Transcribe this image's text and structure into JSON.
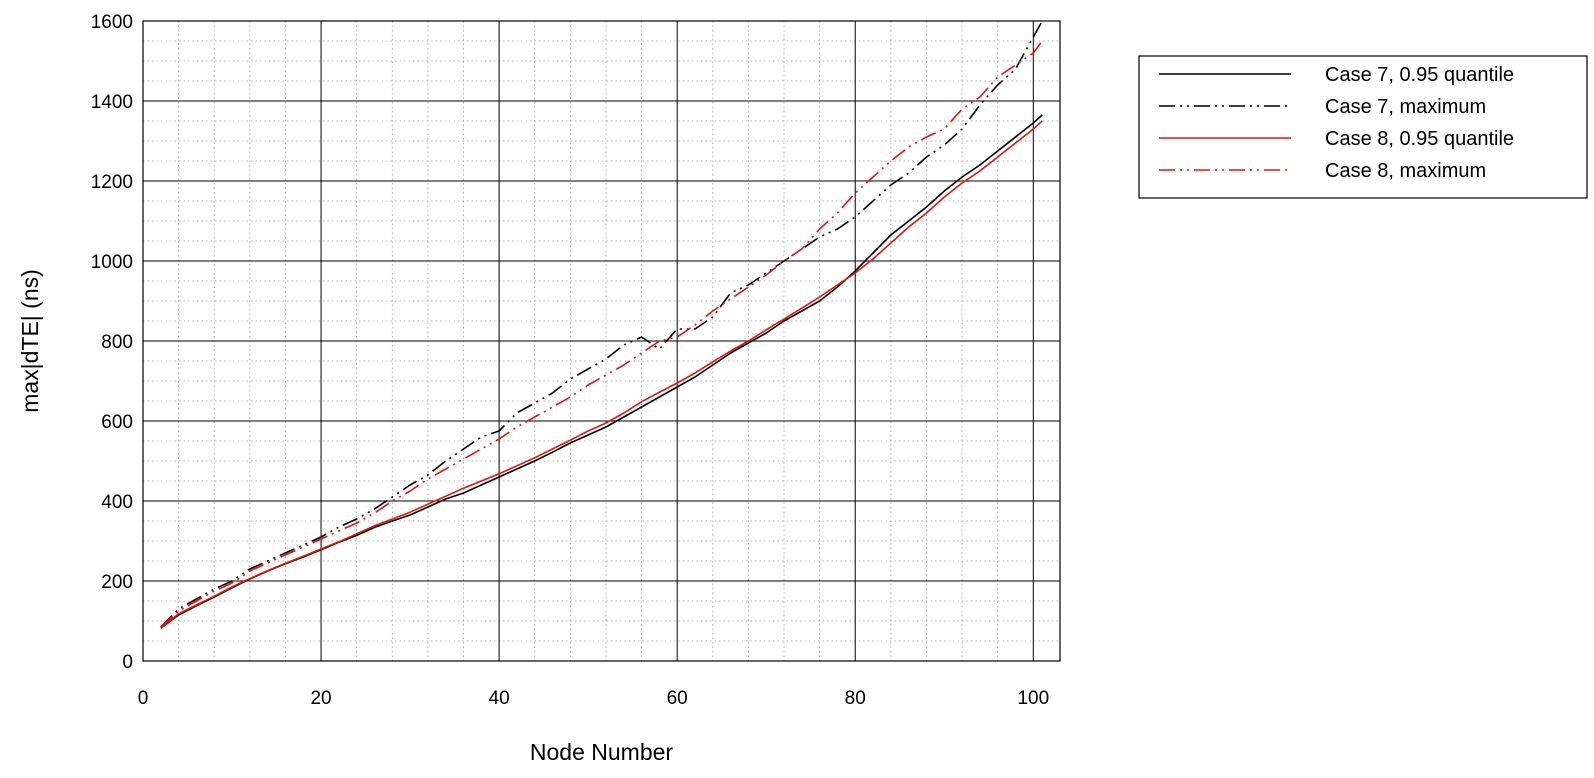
{
  "chart_data": {
    "type": "line",
    "xlabel": "Node Number",
    "ylabel": "max|dTE| (ns)",
    "xlim": [
      0,
      103
    ],
    "ylim": [
      0,
      1600
    ],
    "x_ticks": [
      "0",
      "20",
      "40",
      "60",
      "80",
      "100"
    ],
    "y_ticks": [
      "0",
      "200",
      "400",
      "600",
      "800",
      "1000",
      "1200",
      "1400",
      "1600"
    ],
    "grid": true,
    "minor_grid": true,
    "legend_position": "right",
    "x": [
      2,
      4,
      6,
      8,
      10,
      12,
      14,
      16,
      18,
      20,
      22,
      24,
      26,
      28,
      30,
      32,
      34,
      36,
      38,
      40,
      42,
      44,
      46,
      48,
      50,
      52,
      54,
      56,
      58,
      60,
      62,
      64,
      66,
      68,
      70,
      72,
      74,
      76,
      78,
      80,
      82,
      84,
      86,
      88,
      90,
      92,
      94,
      96,
      98,
      100,
      101
    ],
    "series": [
      {
        "name": "Case 7, 0.95 quantile",
        "color": "#000000",
        "dash": "solid",
        "values": [
          82,
          115,
          138,
          160,
          183,
          205,
          225,
          243,
          260,
          278,
          297,
          314,
          334,
          350,
          365,
          385,
          405,
          420,
          440,
          460,
          480,
          500,
          522,
          545,
          565,
          585,
          610,
          635,
          660,
          685,
          710,
          740,
          770,
          795,
          820,
          850,
          875,
          900,
          935,
          975,
          1020,
          1065,
          1100,
          1135,
          1175,
          1210,
          1240,
          1275,
          1310,
          1345,
          1365
        ]
      },
      {
        "name": "Case 7, maximum",
        "color": "#000000",
        "dash": "dashdotdot",
        "values": [
          85,
          130,
          155,
          180,
          200,
          230,
          250,
          270,
          290,
          310,
          335,
          355,
          380,
          410,
          440,
          465,
          500,
          530,
          560,
          575,
          620,
          645,
          670,
          705,
          730,
          755,
          790,
          810,
          780,
          830,
          830,
          860,
          920,
          940,
          970,
          1000,
          1030,
          1060,
          1080,
          1110,
          1150,
          1190,
          1220,
          1260,
          1290,
          1330,
          1390,
          1440,
          1480,
          1560,
          1600
        ]
      },
      {
        "name": "Case 8, 0.95 quantile",
        "color": "#e8120c",
        "dash": "solid",
        "values": [
          82,
          118,
          140,
          162,
          185,
          206,
          226,
          244,
          262,
          280,
          298,
          318,
          338,
          355,
          372,
          392,
          412,
          432,
          450,
          468,
          488,
          508,
          530,
          552,
          575,
          595,
          620,
          648,
          672,
          695,
          720,
          748,
          775,
          800,
          828,
          855,
          882,
          910,
          940,
          970,
          1005,
          1045,
          1085,
          1120,
          1160,
          1195,
          1225,
          1260,
          1295,
          1330,
          1350
        ]
      },
      {
        "name": "Case 8, maximum",
        "color": "#e8120c",
        "dash": "dashdotdot",
        "values": [
          84,
          125,
          150,
          175,
          195,
          225,
          245,
          265,
          285,
          305,
          325,
          345,
          370,
          400,
          425,
          455,
          480,
          505,
          530,
          555,
          585,
          610,
          635,
          660,
          690,
          715,
          740,
          770,
          800,
          810,
          840,
          875,
          905,
          935,
          965,
          1000,
          1030,
          1080,
          1120,
          1170,
          1210,
          1250,
          1285,
          1310,
          1330,
          1380,
          1410,
          1460,
          1490,
          1520,
          1550
        ]
      }
    ]
  }
}
